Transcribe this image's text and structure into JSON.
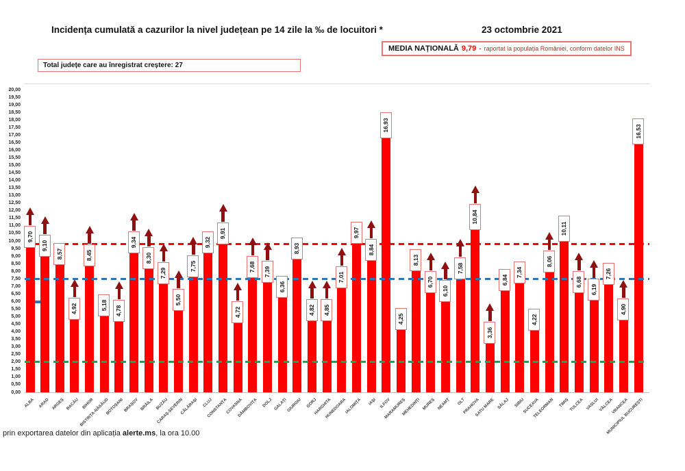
{
  "header": {
    "date": "23 octombrie 2021",
    "media_box": {
      "label": "MEDIA NAȚIONALĂ",
      "value": "9,79",
      "separator": "-",
      "note": "raportat la populația României, conform datelor INS"
    },
    "total_box": {
      "label": "Total județe care au înregistrat creștere:",
      "value": "27"
    }
  },
  "footer": {
    "prefix": "prin exportarea datelor din aplicația ",
    "app_name": "alerte.ms",
    "suffix": ", la ora 10.00"
  },
  "chart_data": {
    "type": "bar",
    "title": "Incidența cumulată a cazurilor la nivel județean pe 14 zile la ‰ de locuitori *",
    "xlabel": "",
    "ylabel": "",
    "ylim": [
      0,
      20
    ],
    "ytick_step": 0.5,
    "grid": false,
    "decimal_separator": ",",
    "legend": "none",
    "national_average": 9.79,
    "increase_total": 27,
    "categories": [
      "ALBA",
      "ARAD",
      "ARGEȘ",
      "BACĂU",
      "BIHOR",
      "BISTRIȚA-NĂSĂUD",
      "BOTOȘANI",
      "BRAȘOV",
      "BRĂILA",
      "BUZĂU",
      "CARAȘ-SEVERIN",
      "CĂLĂRAȘI",
      "CLUJ",
      "CONSTANȚA",
      "COVASNA",
      "DÂMBOVIȚA",
      "DOLJ",
      "GALAȚI",
      "GIURGIU",
      "GORJ",
      "HARGHITA",
      "HUNEDOARA",
      "IALOMIȚA",
      "IAȘI",
      "ILFOV",
      "MARAMUREȘ",
      "MEHEDINȚI",
      "MUREȘ",
      "NEAMȚ",
      "OLT",
      "PRAHOVA",
      "SATU MARE",
      "SĂLAJ",
      "SIBIU",
      "SUCEAVA",
      "TELEORMAN",
      "TIMIȘ",
      "TULCEA",
      "VASLUI",
      "VÂLCEA",
      "VRANCEA",
      "MUNICIPIUL BUCUREȘTI"
    ],
    "values": [
      9.7,
      9.1,
      8.57,
      4.92,
      8.45,
      5.18,
      4.78,
      9.34,
      8.3,
      7.29,
      5.5,
      7.75,
      9.32,
      9.91,
      4.72,
      7.68,
      7.39,
      6.36,
      8.93,
      4.82,
      4.85,
      7.01,
      9.97,
      8.84,
      16.93,
      4.25,
      8.13,
      6.7,
      6.1,
      7.58,
      10.84,
      3.36,
      6.84,
      7.34,
      4.22,
      8.06,
      10.11,
      6.68,
      6.19,
      7.26,
      4.9,
      16.53
    ],
    "increase": [
      true,
      true,
      false,
      true,
      true,
      false,
      true,
      true,
      true,
      true,
      true,
      true,
      false,
      true,
      true,
      true,
      true,
      false,
      false,
      true,
      true,
      true,
      false,
      true,
      false,
      false,
      false,
      true,
      true,
      true,
      true,
      true,
      false,
      false,
      false,
      true,
      false,
      true,
      true,
      false,
      true,
      false
    ],
    "reference_lines": [
      {
        "name": "media-nationala",
        "value": 9.79,
        "color": "#ff0000",
        "x_end": 948
      },
      {
        "name": "threshold-7-5",
        "value": 7.5,
        "color": "#2e75b6",
        "x_end": 948
      },
      {
        "name": "threshold-2",
        "value": 2.0,
        "color": "#00b050",
        "x_end": 941
      }
    ],
    "colors": {
      "bar": "#ff0000",
      "arrow": "#8f1010",
      "label_border": "#e57373"
    }
  }
}
